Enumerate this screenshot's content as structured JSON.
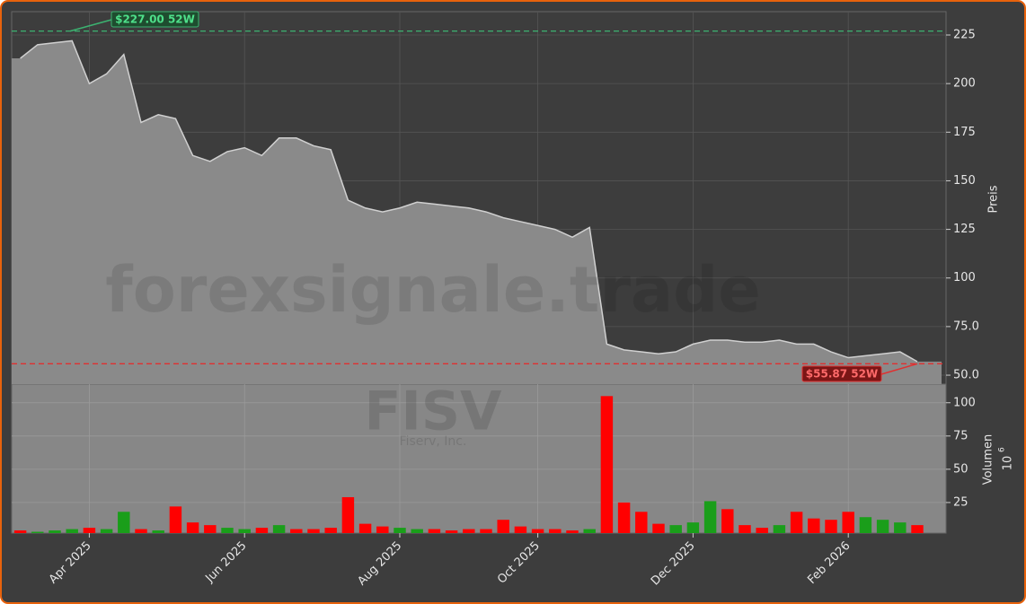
{
  "chart_data": [
    {
      "type": "area",
      "watermark": "forexsignale.trade",
      "ticker": "FISV",
      "company": "Fiserv, Inc.",
      "ylabel": "Preis",
      "categories": [
        null,
        null,
        null,
        null,
        "Apr 2025",
        null,
        null,
        null,
        null,
        null,
        null,
        null,
        null,
        "Jun 2025",
        null,
        null,
        null,
        null,
        null,
        null,
        null,
        null,
        "Aug 2025",
        null,
        null,
        null,
        null,
        null,
        null,
        null,
        "Oct 2025",
        null,
        null,
        null,
        null,
        null,
        null,
        null,
        null,
        "Dec 2025",
        null,
        null,
        null,
        null,
        null,
        null,
        null,
        null,
        "Feb 2026",
        null,
        null,
        null,
        null
      ],
      "values": [
        213,
        220,
        221,
        222,
        200,
        205,
        215,
        180,
        184,
        182,
        163,
        160,
        165,
        167,
        163,
        172,
        172,
        168,
        166,
        140,
        136,
        134,
        136,
        139,
        138,
        137,
        136,
        134,
        131,
        129,
        127,
        125,
        121,
        126,
        66,
        63,
        62,
        61,
        62,
        66,
        68,
        68,
        67,
        67,
        68,
        66,
        66,
        62,
        59,
        60,
        61,
        62,
        57
      ],
      "color": "#8a8a8a",
      "line_color": "#d0d0d0",
      "ylim": [
        45.4,
        237
      ],
      "yticks": [
        {
          "value": 50,
          "label": "50.0"
        },
        {
          "value": 75,
          "label": "75.0"
        },
        100,
        125,
        150,
        175,
        200,
        225
      ],
      "grid": true,
      "high": {
        "value": 227,
        "label": "$227.00 52W",
        "color": "#3cb371"
      },
      "low": {
        "value": 55.87,
        "label": "$55.87 52W",
        "color": "#e03030"
      }
    },
    {
      "type": "bar",
      "ylabel": "Volumen",
      "unit_base": "10",
      "unit_exp": "6",
      "values": [
        4,
        3,
        4,
        5,
        6,
        5,
        18,
        5,
        4,
        22,
        10,
        8,
        6,
        5,
        6,
        8,
        5,
        5,
        6,
        29,
        9,
        7,
        6,
        5,
        5,
        4,
        5,
        5,
        12,
        7,
        5,
        5,
        4,
        5,
        105,
        25,
        18,
        9,
        8,
        10,
        26,
        20,
        8,
        6,
        8,
        18,
        13,
        12,
        18,
        14,
        12,
        10,
        8
      ],
      "up_color": "#1a9e1a",
      "down_color": "#ff0000",
      "ylim": [
        2,
        114
      ],
      "yticks": [
        25,
        50,
        75,
        100
      ],
      "grid": true
    }
  ]
}
